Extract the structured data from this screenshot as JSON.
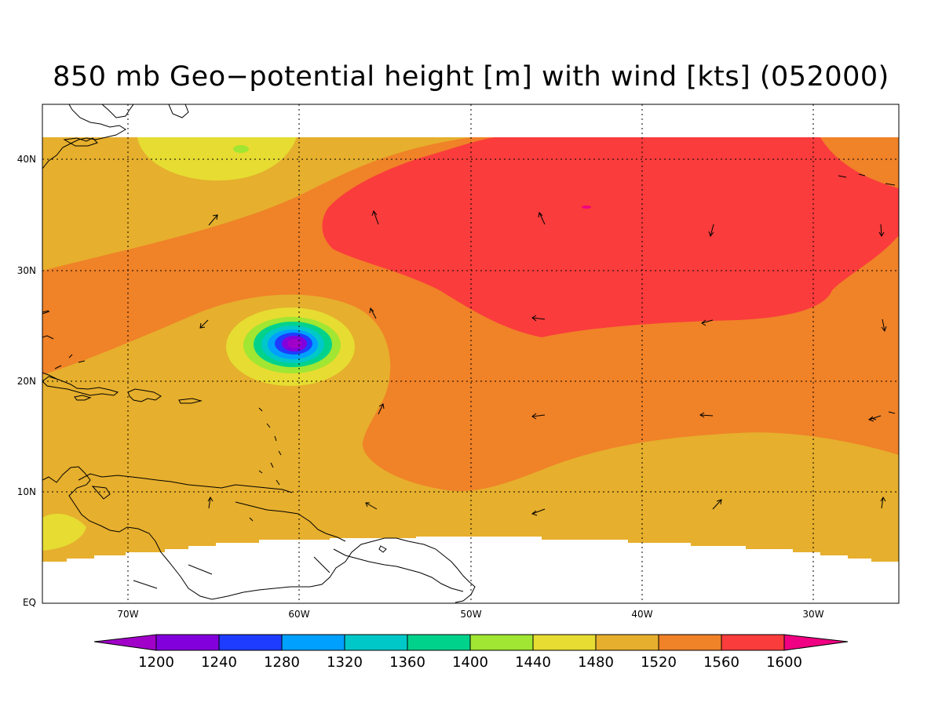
{
  "title": "850 mb Geo−potential height [m] with wind [kts] (052000)",
  "map": {
    "lat_range": [
      0,
      45
    ],
    "lon_range": [
      -75,
      -25
    ],
    "lat_ticks": [
      {
        "value": 0,
        "label": "EQ"
      },
      {
        "value": 10,
        "label": "10N"
      },
      {
        "value": 20,
        "label": "20N"
      },
      {
        "value": 30,
        "label": "30N"
      },
      {
        "value": 40,
        "label": "40N"
      }
    ],
    "lon_ticks": [
      {
        "value": -70,
        "label": "70W"
      },
      {
        "value": -60,
        "label": "60W"
      },
      {
        "value": -50,
        "label": "50W"
      },
      {
        "value": -40,
        "label": "40W"
      },
      {
        "value": -30,
        "label": "30W"
      }
    ],
    "gridlines": "dotted",
    "shaded_variable": "850 mb geopotential height (m)",
    "features": [
      {
        "name": "low-center",
        "lat": 23.3,
        "lon": -60.0,
        "value_min": 1200
      },
      {
        "name": "high-ridge",
        "lat": 33,
        "lon": -40,
        "value_range": [
          1560,
          1600
        ]
      }
    ]
  },
  "colorbar": {
    "levels": [
      "1200",
      "1240",
      "1280",
      "1320",
      "1360",
      "1400",
      "1440",
      "1480",
      "1520",
      "1560",
      "1600"
    ],
    "colors": [
      "#a000c8",
      "#8200dc",
      "#1e3cff",
      "#00a0ff",
      "#00c8c8",
      "#00d28c",
      "#a0e632",
      "#e6dc32",
      "#e6af2d",
      "#f08228",
      "#fa3c3c",
      "#f00082"
    ],
    "extend": "both"
  }
}
